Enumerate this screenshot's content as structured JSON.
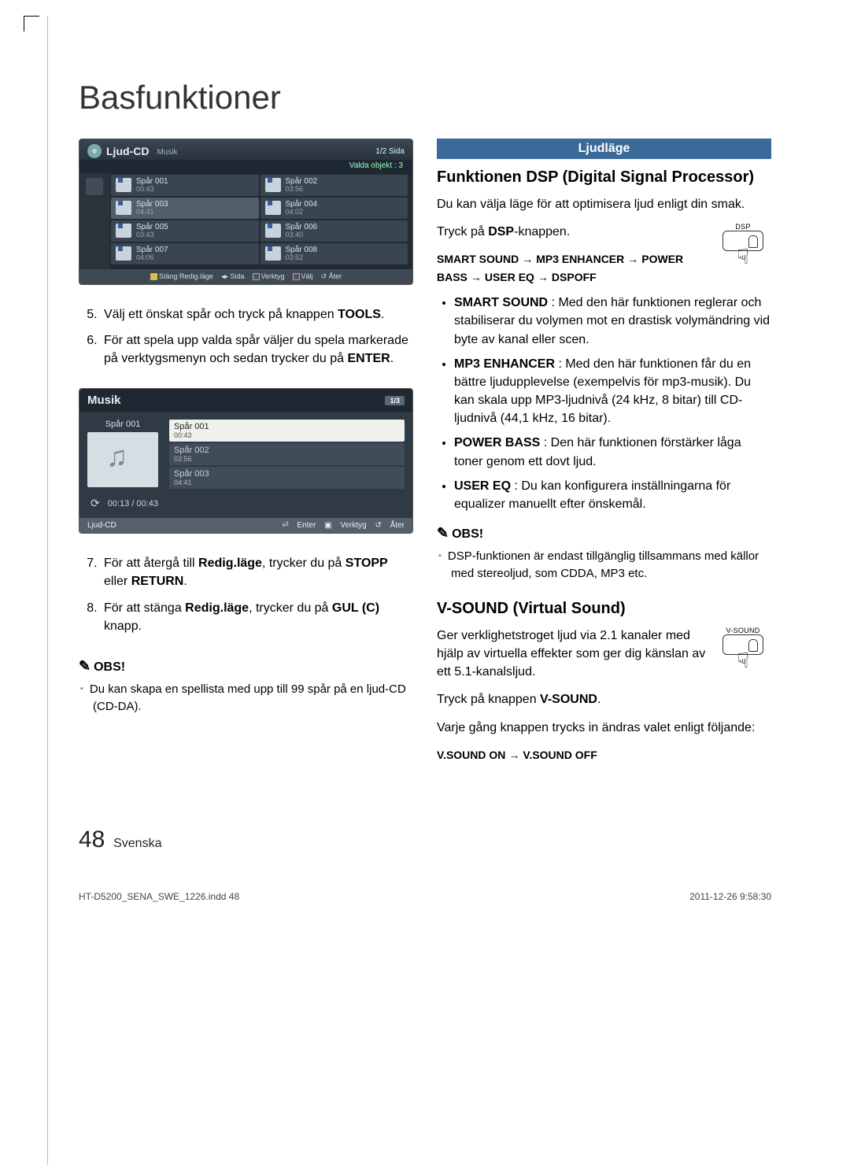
{
  "page": {
    "title": "Basfunktioner",
    "number": "48",
    "lang": "Svenska",
    "file": "HT-D5200_SENA_SWE_1226.indd   48",
    "timestamp": "2011-12-26   9:58:30"
  },
  "cdScreen": {
    "headerTitle": "Ljud-CD",
    "headerSub": "Musik",
    "headerRight": "1/2 Sida",
    "selectedLabel": "Valda objekt : 3",
    "tracks": [
      {
        "name": "Spår 001",
        "time": "00:43",
        "sel": false
      },
      {
        "name": "Spår 002",
        "time": "03:56",
        "sel": false
      },
      {
        "name": "Spår 003",
        "time": "04:41",
        "sel": true
      },
      {
        "name": "Spår 004",
        "time": "04:02",
        "sel": false
      },
      {
        "name": "Spår 005",
        "time": "03:43",
        "sel": false
      },
      {
        "name": "Spår 006",
        "time": "03:40",
        "sel": false
      },
      {
        "name": "Spår 007",
        "time": "04:06",
        "sel": false
      },
      {
        "name": "Spår 008",
        "time": "03:52",
        "sel": false
      }
    ],
    "footer": {
      "close": "Stäng Redig.läge",
      "page": "Sida",
      "tools": "Verktyg",
      "select": "Välj",
      "back": "Åter"
    }
  },
  "stepsA": [
    {
      "n": "5.",
      "html": "Välj ett önskat spår och tryck på knappen <b>TOOLS</b>."
    },
    {
      "n": "6.",
      "html": "För att spela upp valda spår väljer du spela markerade på verktygsmenyn och sedan trycker du på <b>ENTER</b>."
    }
  ],
  "playScreen": {
    "header": "Musik",
    "page": "1/3",
    "nowArt": "Spår 001",
    "list": [
      {
        "name": "Spår 001",
        "time": "00:43",
        "active": true
      },
      {
        "name": "Spår 002",
        "time": "03:56",
        "active": false
      },
      {
        "name": "Spår 003",
        "time": "04:41",
        "active": false
      }
    ],
    "elapsed": "00:13 / 00:43",
    "footLeft": "Ljud-CD",
    "foot": {
      "enter": "Enter",
      "tools": "Verktyg",
      "back": "Åter"
    }
  },
  "stepsB": [
    {
      "n": "7.",
      "html": "För att återgå till <b>Redig.läge</b>, trycker du på <b>STOPP</b> eller <b>RETURN</b>."
    },
    {
      "n": "8.",
      "html": "För att stänga <b>Redig.läge</b>, trycker du på <b>GUL (C)</b> knapp."
    }
  ],
  "noteLeft": {
    "hdr": "OBS!",
    "items": [
      "Du kan skapa en spellista med upp till 99 spår på en ljud-CD (CD-DA)."
    ]
  },
  "right": {
    "secTitle": "Ljudläge",
    "dspTitle": "Funktionen DSP (Digital Signal Processor)",
    "dspIntro": "Du kan välja läge för att optimisera ljud enligt din smak.",
    "dspPress": "Tryck på <b>DSP</b>-knappen.",
    "dspBtn": "DSP",
    "seq": [
      "SMART SOUND",
      "MP3 ENHANCER",
      "POWER BASS",
      "USER EQ",
      "DSPOFF"
    ],
    "dspItems": [
      {
        "b": "SMART SOUND",
        "t": " : Med den här funktionen reglerar och stabiliserar du volymen mot en drastisk volymändring vid byte av kanal eller scen."
      },
      {
        "b": "MP3 ENHANCER",
        "t": " : Med den här funktionen får du en bättre ljudupplevelse (exempelvis för mp3-musik). Du kan skala upp MP3-ljudnivå (24 kHz, 8 bitar) till CD-ljudnivå (44,1 kHz, 16 bitar)."
      },
      {
        "b": "POWER BASS",
        "t": " : Den här funktionen förstärker låga toner genom ett dovt ljud."
      },
      {
        "b": "USER EQ",
        "t": " : Du kan konfigurera inställningarna för equalizer manuellt efter önskemål."
      }
    ],
    "noteRight": {
      "hdr": "OBS!",
      "items": [
        "DSP-funktionen är endast tillgänglig tillsammans med källor med stereoljud, som CDDA, MP3 etc."
      ]
    },
    "vsoundTitle": "V-SOUND (Virtual Sound)",
    "vsoundP1": "Ger verklighetstroget ljud via 2.1 kanaler med hjälp av virtuella effekter som ger dig känslan av ett 5.1-kanalsljud.",
    "vsoundBtn": "V-SOUND",
    "vsoundPress": "Tryck på knappen <b>V-SOUND</b>.",
    "vsoundP2": "Varje gång knappen trycks in ändras valet enligt följande:",
    "vsoundSeq": [
      "V.SOUND ON",
      "V.SOUND OFF"
    ]
  }
}
